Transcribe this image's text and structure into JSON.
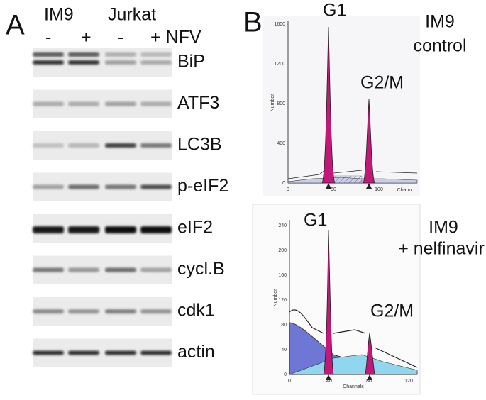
{
  "panel_a": {
    "label": "A",
    "groups": [
      "IM9",
      "Jurkat"
    ],
    "treatments": [
      "-",
      "+",
      "-",
      "+ NFV"
    ],
    "proteins": [
      "BiP",
      "ATF3",
      "LC3B",
      "p-eIF2",
      "eIF2",
      "cycl.B",
      "cdk1",
      "actin"
    ]
  },
  "panel_b": {
    "label": "B",
    "top": {
      "title": [
        "IM9",
        "control"
      ],
      "peaks": [
        "G1",
        "G2/M"
      ],
      "y_axis_label": "Number",
      "x_axis_label": "Chann",
      "yticks": [
        0,
        400,
        800,
        1200,
        1600
      ],
      "xticks": [
        0,
        50,
        100
      ]
    },
    "bottom": {
      "title": [
        "IM9",
        "+ nelfinavir"
      ],
      "peaks": [
        "G1",
        "G2/M"
      ],
      "y_axis_label": "Number",
      "x_axis_label": "Channels",
      "yticks": [
        0,
        40,
        80,
        120,
        160,
        200,
        240
      ],
      "xticks": [
        0,
        40,
        80,
        120
      ]
    }
  }
}
